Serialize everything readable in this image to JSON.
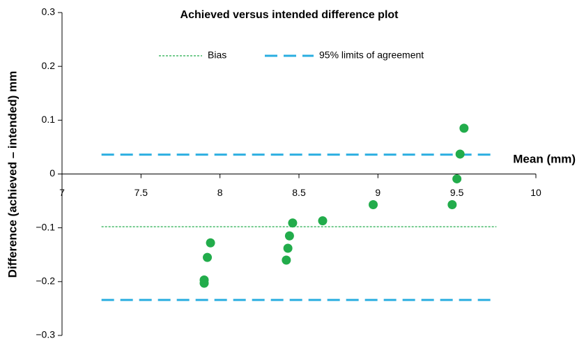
{
  "chart_data": {
    "type": "scatter",
    "title": "Achieved versus intended difference plot",
    "xlabel": "Mean (mm)",
    "ylabel": "Difference (achieved – intended) mm",
    "color": "#22ac4b",
    "x": [
      7.9,
      7.9,
      7.92,
      7.94,
      8.42,
      8.43,
      8.44,
      8.46,
      8.65,
      8.97,
      9.47,
      9.5,
      9.52,
      9.545
    ],
    "values": [
      -0.197,
      -0.203,
      -0.155,
      -0.128,
      -0.16,
      -0.138,
      -0.115,
      -0.091,
      -0.087,
      -0.057,
      -0.057,
      -0.009,
      0.037,
      0.085
    ],
    "reference_lines": [
      {
        "name": "Bias",
        "color": "#22ac4b",
        "dash": "dotted",
        "values": [
          -0.098
        ],
        "xrange": [
          7.25,
          9.75
        ]
      },
      {
        "name": "95% limits of agreement",
        "color": "#2aaee0",
        "dash": "dashed",
        "values": [
          0.036,
          -0.234
        ],
        "xrange": [
          7.25,
          9.75
        ]
      }
    ],
    "xlim": [
      7,
      10
    ],
    "ylim": [
      -0.3,
      0.3
    ],
    "xticks": [
      7,
      7.5,
      8,
      8.5,
      9,
      9.5,
      10
    ],
    "yticks": [
      {
        "value": -0.3,
        "label": "−0.3"
      },
      {
        "value": -0.2,
        "label": "−0.2"
      },
      {
        "value": -0.1,
        "label": "−0.1"
      },
      0,
      0.1,
      0.2,
      0.3
    ],
    "legend": "top"
  }
}
